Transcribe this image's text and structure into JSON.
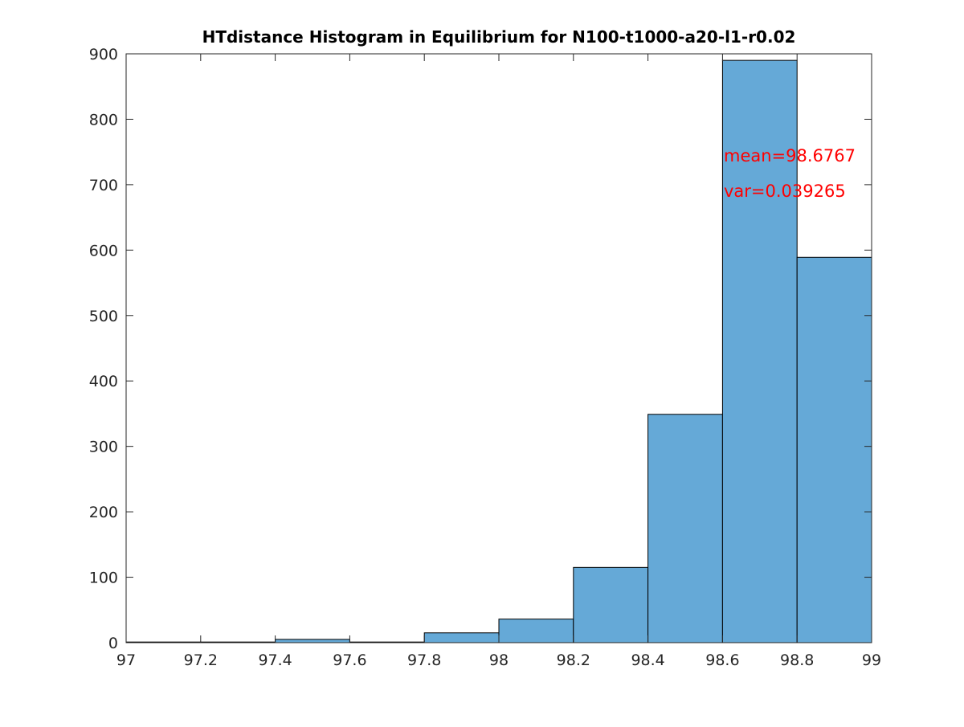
{
  "chart_data": {
    "type": "bar",
    "title": "HTdistance Histogram in Equilibrium for N100-t1000-a20-l1-r0.02",
    "xlabel": "",
    "ylabel": "",
    "xlim": [
      97,
      99
    ],
    "ylim": [
      0,
      900
    ],
    "bin_edges": [
      97,
      97.2,
      97.4,
      97.6,
      97.8,
      98,
      98.2,
      98.4,
      98.6,
      98.8,
      99
    ],
    "values": [
      1,
      1,
      5,
      1,
      15,
      36,
      115,
      349,
      890,
      589
    ],
    "xticks": [
      "97",
      "97.2",
      "97.4",
      "97.6",
      "97.8",
      "98",
      "98.2",
      "98.4",
      "98.6",
      "98.8",
      "99"
    ],
    "yticks": [
      "0",
      "100",
      "200",
      "300",
      "400",
      "500",
      "600",
      "700",
      "800",
      "900"
    ],
    "annotations": [
      "mean=98.6767",
      "var=0.039265"
    ],
    "bar_color": "#65a9d7",
    "edge_color": "#000000",
    "annotation_color": "#ff0000",
    "grid": false,
    "legend": false
  }
}
